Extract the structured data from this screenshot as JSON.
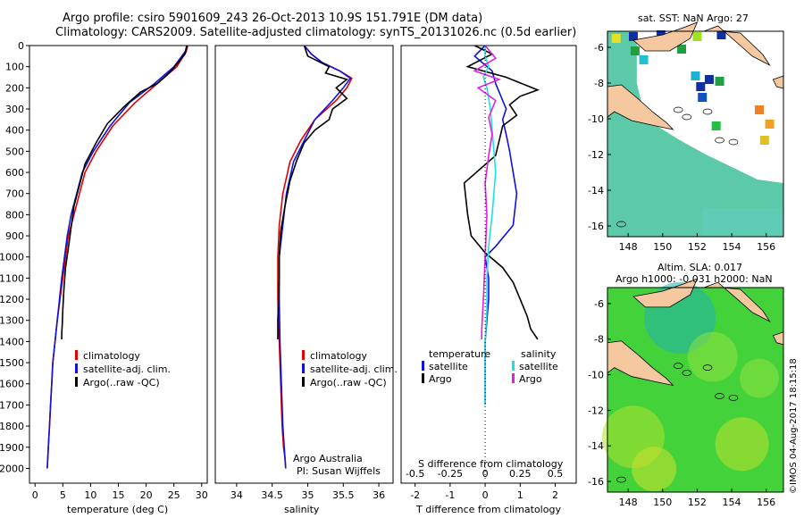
{
  "header": {
    "line1": "Argo profile: csiro 5901609_243 26-Oct-2013 10.9S 151.791E (DM data)",
    "line2": "Climatology: CARS2009. Satellite-adjusted climatology: synTS_20131026.nc (0.5d earlier)"
  },
  "footer": {
    "imos": "©IMOS 04-Aug-2017 18:15:18"
  },
  "colors": {
    "climatology": "#e00000",
    "satellite": "#1010e0",
    "argo": "#000000",
    "sat_salinity": "#20e0e0",
    "argo_salinity": "#e020e0",
    "land": "#f5c8a0"
  },
  "panels": {
    "temperature": {
      "xlabel": "temperature (deg C)",
      "legend": [
        "climatology",
        "satellite-adj. clim.",
        "Argo(..raw -QC)"
      ]
    },
    "salinity": {
      "xlabel": "salinity",
      "legend": [
        "climatology",
        "satellite-adj. clim.",
        "Argo(..raw -QC)"
      ],
      "credit1": "Argo Australia",
      "credit2": "PI: Susan Wijffels"
    },
    "difference": {
      "xlabel_top": "S difference from climatology",
      "xlabel_bottom": "T difference from climatology",
      "legend_temp_title": "temperature",
      "legend_sal_title": "salinity",
      "legend_items": [
        "satellite",
        "Argo",
        "satellite",
        "Argo"
      ]
    },
    "map_sst": {
      "title": "sat. SST: NaN Argo: 27"
    },
    "map_sla": {
      "title1": "Altim. SLA: 0.017",
      "title2": "Argo h1000: -0.031 h2000: NaN"
    }
  },
  "chart_data": [
    {
      "type": "line",
      "title": "",
      "xlabel": "temperature (deg C)",
      "ylabel": "",
      "xlim": [
        -1,
        31
      ],
      "ylim": [
        0,
        2070
      ],
      "y_reversed": true,
      "xticks": [
        0,
        5,
        10,
        15,
        20,
        25,
        30
      ],
      "yticks": [
        0,
        100,
        200,
        300,
        400,
        500,
        600,
        700,
        800,
        900,
        1000,
        1100,
        1200,
        1300,
        1400,
        1500,
        1600,
        1700,
        1800,
        1900,
        2000
      ],
      "series": [
        {
          "name": "climatology",
          "color": "#e00000",
          "x": [
            27.5,
            27.2,
            25.5,
            22,
            18,
            14,
            11,
            9,
            8,
            7,
            6,
            5.5,
            5,
            4.5,
            4,
            3.6,
            3.2,
            3,
            2.8,
            2.6,
            2.4,
            2.3,
            2.2
          ],
          "y": [
            0,
            30,
            100,
            180,
            270,
            380,
            500,
            600,
            700,
            800,
            900,
            1000,
            1100,
            1200,
            1300,
            1400,
            1500,
            1600,
            1700,
            1800,
            1900,
            1950,
            2000
          ]
        },
        {
          "name": "satellite-adj. clim.",
          "color": "#1010e0",
          "x": [
            27.4,
            27,
            25,
            21.5,
            17,
            13.5,
            10.5,
            8.5,
            7.5,
            6.5,
            5.8,
            5.3,
            4.8,
            4.4,
            4,
            3.6,
            3.2,
            3,
            2.8,
            2.6,
            2.4,
            2.3,
            2.2
          ],
          "y": [
            0,
            30,
            100,
            180,
            270,
            380,
            500,
            600,
            700,
            800,
            900,
            1000,
            1100,
            1200,
            1300,
            1400,
            1500,
            1600,
            1700,
            1800,
            1900,
            1950,
            2000
          ]
        },
        {
          "name": "Argo(..raw -QC)",
          "color": "#000000",
          "x": [
            27.3,
            27,
            24.5,
            22,
            19,
            16,
            13,
            11,
            9,
            8,
            7,
            6.5,
            6,
            5.5,
            5.2,
            5,
            4.9,
            4.8,
            4.8
          ],
          "y": [
            0,
            40,
            120,
            180,
            220,
            290,
            370,
            460,
            560,
            660,
            760,
            860,
            960,
            1050,
            1150,
            1250,
            1320,
            1360,
            1390
          ]
        }
      ]
    },
    {
      "type": "line",
      "xlabel": "salinity",
      "xlim": [
        33.7,
        36.2
      ],
      "ylim": [
        0,
        2070
      ],
      "y_reversed": true,
      "xticks": [
        34,
        34.5,
        35,
        35.5,
        36
      ],
      "series": [
        {
          "name": "climatology",
          "color": "#e00000",
          "x": [
            34.95,
            35.05,
            35.2,
            35.45,
            35.62,
            35.55,
            35.4,
            35.1,
            34.9,
            34.75,
            34.65,
            34.6,
            34.58,
            34.58,
            34.6,
            34.62,
            34.64,
            34.66,
            34.68,
            34.69
          ],
          "y": [
            0,
            40,
            80,
            120,
            155,
            200,
            260,
            350,
            450,
            550,
            700,
            850,
            1000,
            1200,
            1400,
            1600,
            1800,
            1900,
            1950,
            2000
          ]
        },
        {
          "name": "satellite-adj. clim.",
          "color": "#1010e0",
          "x": [
            34.95,
            35.05,
            35.2,
            35.45,
            35.6,
            35.5,
            35.35,
            35.1,
            34.95,
            34.8,
            34.7,
            34.65,
            34.6,
            34.6,
            34.61,
            34.63,
            34.65,
            34.67,
            34.68,
            34.69
          ],
          "y": [
            0,
            40,
            80,
            120,
            155,
            200,
            260,
            350,
            450,
            550,
            700,
            850,
            1000,
            1200,
            1400,
            1600,
            1800,
            1900,
            1950,
            2000
          ]
        },
        {
          "name": "Argo(..raw -QC)",
          "color": "#000000",
          "x": [
            34.95,
            35.0,
            35.3,
            35.25,
            35.55,
            35.4,
            35.55,
            35.35,
            35.3,
            35.1,
            34.95,
            34.85,
            34.75,
            34.68,
            34.62,
            34.6,
            34.6,
            34.59,
            34.58,
            34.58
          ],
          "y": [
            0,
            50,
            100,
            130,
            160,
            200,
            250,
            300,
            350,
            400,
            460,
            540,
            640,
            760,
            880,
            1000,
            1100,
            1200,
            1300,
            1390
          ]
        }
      ]
    },
    {
      "type": "line",
      "xlabel": "T difference from climatology",
      "xlabel_top": "S difference from climatology",
      "xlim": [
        -2.4,
        2.6
      ],
      "ylim": [
        0,
        2070
      ],
      "y_reversed": true,
      "xticks_bottom": [
        -2,
        -1,
        0,
        1,
        2
      ],
      "xticks_top": [
        "-0.5",
        "-0.25",
        "0",
        "0.25",
        "0.5"
      ],
      "series": [
        {
          "name": "temperature satellite",
          "color": "#1010e0",
          "x": [
            0,
            -0.3,
            0.2,
            0.3,
            0.4,
            0.6,
            0.5,
            0.6,
            0.7,
            0.8,
            0.9,
            0.8,
            0.3,
            0,
            0.1,
            0.1,
            0.05,
            0,
            0,
            0,
            0
          ],
          "y": [
            0,
            50,
            120,
            180,
            220,
            300,
            350,
            420,
            500,
            600,
            700,
            850,
            950,
            1000,
            1100,
            1200,
            1300,
            1400,
            1500,
            1600,
            1700
          ]
        },
        {
          "name": "temperature Argo",
          "color": "#000000",
          "x": [
            -0.3,
            0.2,
            -0.5,
            0.6,
            1.5,
            1.0,
            0.7,
            0.9,
            0.5,
            0.4,
            0.3,
            -0.6,
            -0.5,
            -0.4,
            0,
            0.5,
            0.8,
            1.0,
            1.2,
            1.3,
            1.5
          ],
          "y": [
            0,
            40,
            100,
            150,
            210,
            240,
            280,
            330,
            380,
            450,
            520,
            650,
            800,
            900,
            980,
            1050,
            1120,
            1200,
            1280,
            1340,
            1390
          ]
        },
        {
          "name": "salinity satellite",
          "color": "#20e0e0",
          "x": [
            0,
            0,
            0.1,
            -0.05,
            0.05,
            0.15,
            0.2,
            0.25,
            0.3,
            0.2,
            0.1,
            0.05,
            0.05,
            0,
            0,
            0
          ],
          "y": [
            0,
            50,
            100,
            150,
            200,
            300,
            400,
            500,
            600,
            800,
            950,
            1100,
            1250,
            1400,
            1550,
            1700
          ]
        },
        {
          "name": "salinity Argo",
          "color": "#e020e0",
          "x": [
            0,
            0.3,
            -0.3,
            0.4,
            -0.2,
            0.3,
            0.1,
            0.2,
            0.1,
            0,
            0.05,
            0,
            -0.05,
            -0.1,
            -0.1
          ],
          "y": [
            0,
            60,
            120,
            160,
            200,
            260,
            340,
            420,
            520,
            650,
            800,
            1000,
            1200,
            1350,
            1390
          ]
        }
      ]
    },
    {
      "type": "heatmap",
      "title": "sat. SST: NaN Argo: 27",
      "x_ticks": [
        148,
        150,
        152,
        154,
        156
      ],
      "y_ticks": [
        -6,
        -8,
        -10,
        -12,
        -14,
        -16
      ]
    },
    {
      "type": "heatmap",
      "title": "Altim. SLA: 0.017",
      "x_ticks": [
        148,
        150,
        152,
        154,
        156
      ],
      "y_ticks": [
        -6,
        -8,
        -10,
        -12,
        -14,
        -16
      ]
    }
  ]
}
